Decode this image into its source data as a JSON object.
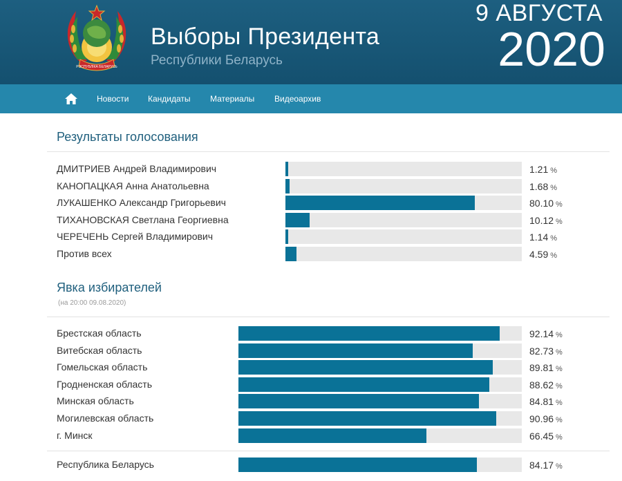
{
  "header": {
    "title": "Выборы Президента",
    "subtitle": "Республики Беларусь",
    "date_day": "9 АВГУСТА",
    "date_year": "2020",
    "emblem_ribbon": "РЭСПУБЛІКА БЕЛАРУСЬ"
  },
  "nav": {
    "home_icon": "home-icon",
    "items": [
      "Новости",
      "Кандидаты",
      "Материалы",
      "Видеоархив"
    ]
  },
  "results": {
    "title": "Результаты голосования",
    "unit": "%",
    "rows": [
      {
        "name": "ДМИТРИЕВ Андрей Владимирович",
        "value": 1.21,
        "display": "1.21"
      },
      {
        "name": "КАНОПАЦКАЯ Анна Анатольевна",
        "value": 1.68,
        "display": "1.68"
      },
      {
        "name": "ЛУКАШЕНКО Александр Григорьевич",
        "value": 80.1,
        "display": "80.10"
      },
      {
        "name": "ТИХАНОВСКАЯ Светлана Георгиевна",
        "value": 10.12,
        "display": "10.12"
      },
      {
        "name": "ЧЕРЕЧЕНЬ Сергей Владимирович",
        "value": 1.14,
        "display": "1.14"
      },
      {
        "name": "Против всех",
        "value": 4.59,
        "display": "4.59"
      }
    ]
  },
  "turnout": {
    "title": "Явка избирателей",
    "note": "(на 20:00 09.08.2020)",
    "unit": "%",
    "rows": [
      {
        "name": "Брестская область",
        "value": 92.14,
        "display": "92.14"
      },
      {
        "name": "Витебская область",
        "value": 82.73,
        "display": "82.73"
      },
      {
        "name": "Гомельская область",
        "value": 89.81,
        "display": "89.81"
      },
      {
        "name": "Гродненская область",
        "value": 88.62,
        "display": "88.62"
      },
      {
        "name": "Минская область",
        "value": 84.81,
        "display": "84.81"
      },
      {
        "name": "Могилевская область",
        "value": 90.96,
        "display": "90.96"
      },
      {
        "name": "г. Минск",
        "value": 66.45,
        "display": "66.45"
      }
    ],
    "total": {
      "name": "Республика Беларусь",
      "value": 84.17,
      "display": "84.17"
    }
  },
  "colors": {
    "header_bg": "#1a5a7a",
    "nav_bg": "#2587ac",
    "bar_fill": "#0a7297",
    "bar_track": "#e8e8e8",
    "section_title": "#1f5f7d"
  }
}
